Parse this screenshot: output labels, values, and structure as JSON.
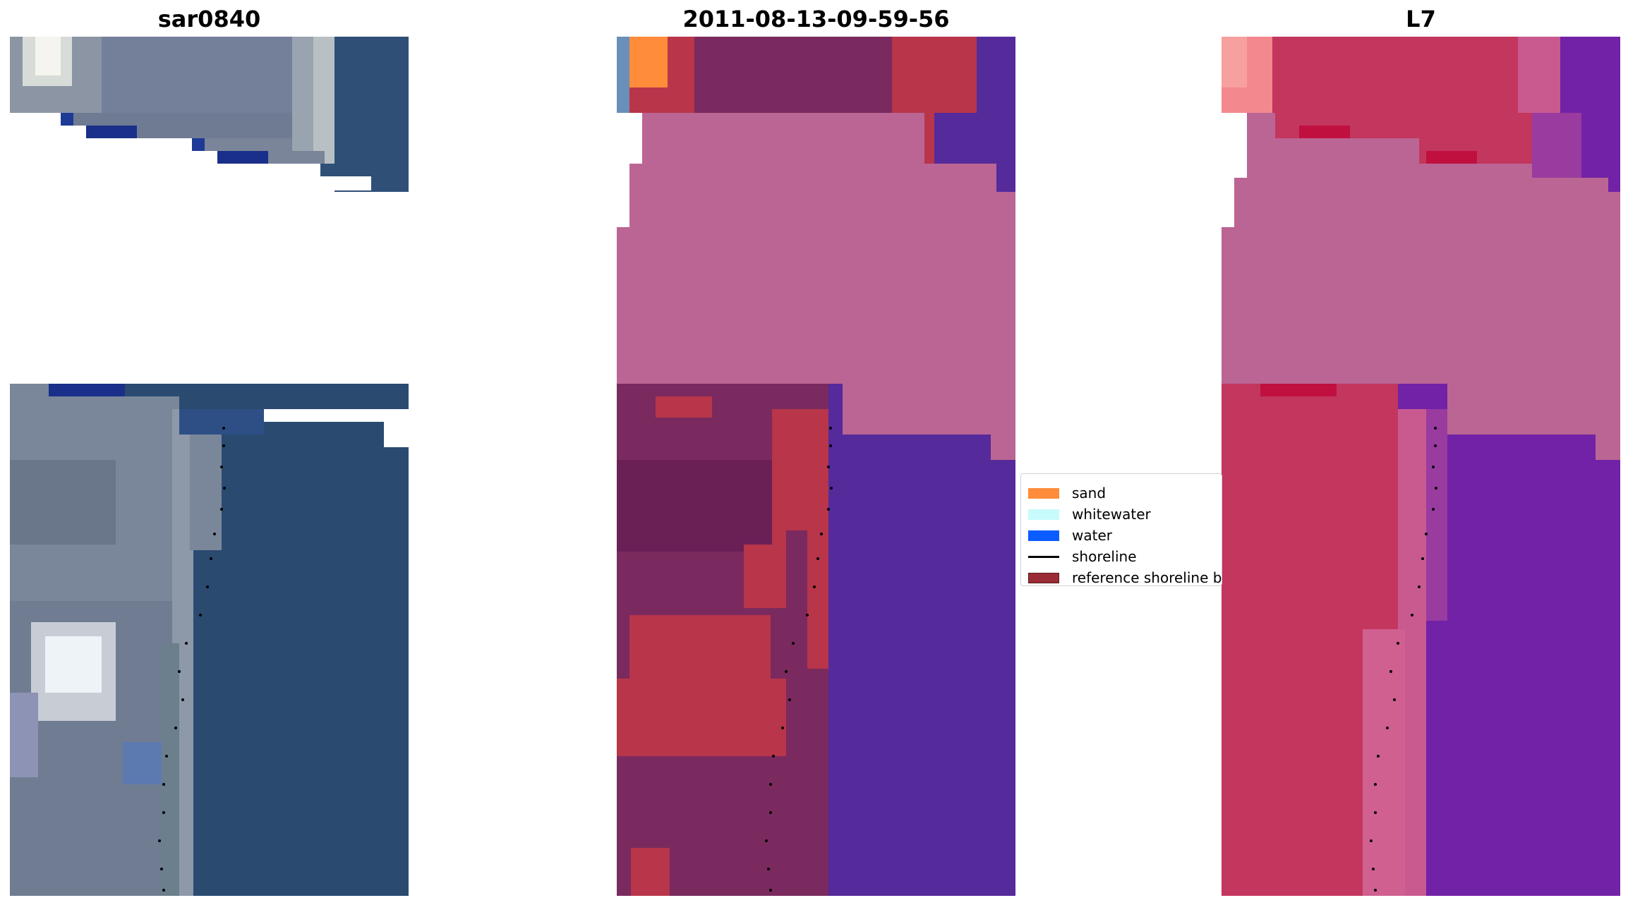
{
  "panels": [
    {
      "title": "sar0840"
    },
    {
      "title": "2011-08-13-09-59-56"
    },
    {
      "title": "L7"
    }
  ],
  "legend": {
    "items": [
      {
        "label": "sand",
        "color": "#ff8c3a",
        "kind": "patch"
      },
      {
        "label": "whitewater",
        "color": "#c8fbfb",
        "kind": "patch"
      },
      {
        "label": "water",
        "color": "#0b5cff",
        "kind": "patch"
      },
      {
        "label": "shoreline",
        "color": "#000000",
        "kind": "line"
      },
      {
        "label": "reference shoreline buffer",
        "color": "#9b2c35",
        "kind": "patch"
      }
    ]
  },
  "colors": {
    "rgb_water": "#2a4a70",
    "rgb_land": "#7a8699",
    "rgb_deep": "#1a2f8a",
    "class_land": "#7a2a5e",
    "class_buffer": "#b8354a",
    "class_water": "#552a9b",
    "class_nodata": "#bb6594",
    "class_sand": "#ff8c3a",
    "l7_land": "#c3365e",
    "l7_water": "#7222a6",
    "l7_nodata": "#bb6594",
    "l7_bright": "#f4888f",
    "shoreline": "#000000"
  }
}
